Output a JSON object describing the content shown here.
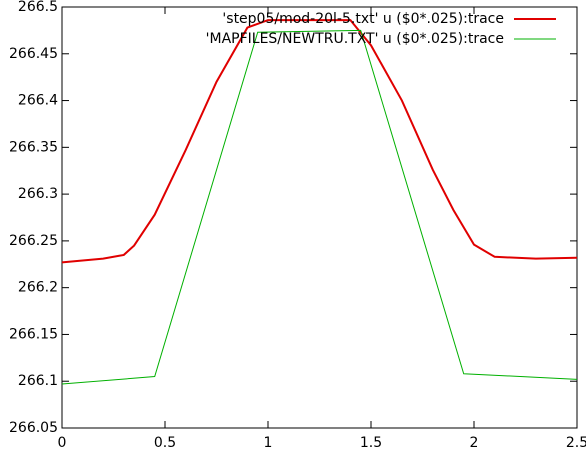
{
  "chart_data": {
    "type": "line",
    "series": [
      {
        "name": "'step05/mod-20l-5.txt' u ($0*.025):trace",
        "color": "#e00000",
        "x": [
          0,
          0.1,
          0.2,
          0.3,
          0.35,
          0.45,
          0.6,
          0.75,
          0.9,
          1.0,
          1.4,
          1.5,
          1.65,
          1.8,
          1.9,
          2.0,
          2.1,
          2.3,
          2.5
        ],
        "values": [
          266.227,
          266.229,
          266.231,
          266.235,
          266.245,
          266.278,
          266.347,
          266.42,
          266.478,
          266.486,
          266.486,
          266.459,
          266.4,
          266.326,
          266.283,
          266.246,
          266.233,
          266.231,
          266.232
        ]
      },
      {
        "name": "'MAPFILES/NEWTRU.TXT' u ($0*.025):trace",
        "color": "#00b000",
        "x": [
          0,
          0.45,
          0.95,
          1.45,
          1.95,
          2.5
        ],
        "values": [
          266.097,
          266.105,
          266.473,
          266.475,
          266.108,
          266.102
        ]
      }
    ],
    "xlim": [
      0,
      2.5
    ],
    "xticks": [
      0,
      0.5,
      1,
      1.5,
      2,
      2.5
    ],
    "ylim": [
      266.05,
      266.5
    ],
    "yticks": [
      266.05,
      266.1,
      266.15,
      266.2,
      266.25,
      266.3,
      266.35,
      266.4,
      266.45,
      266.5
    ],
    "legend": "top-right"
  }
}
